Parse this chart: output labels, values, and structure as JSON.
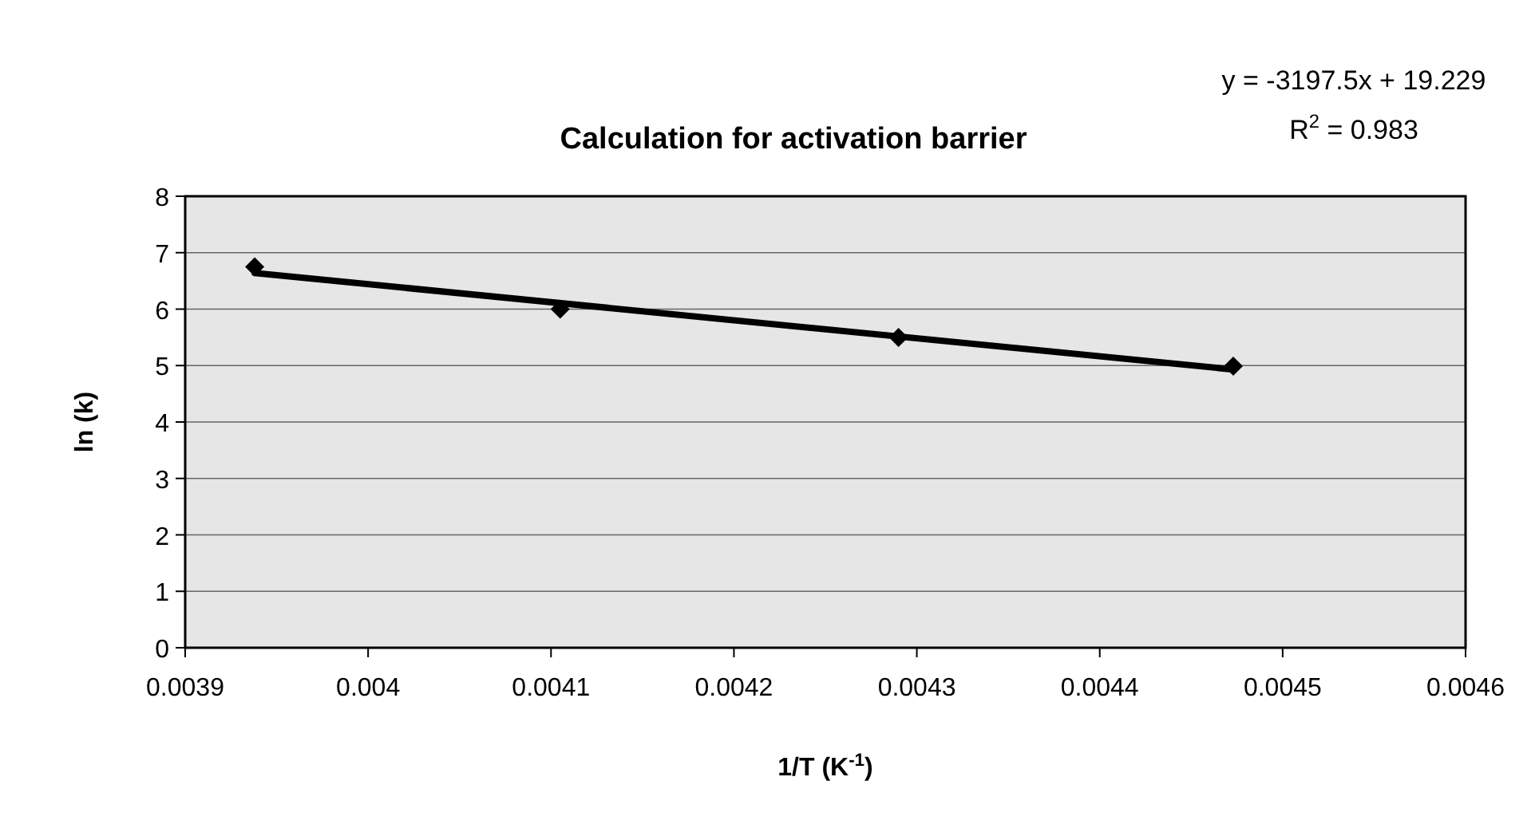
{
  "chart_data": {
    "type": "scatter",
    "title": "Calculation for activation barrier",
    "xlabel": "1/T (K$^{-1}$)",
    "ylabel": "ln (k)",
    "annotations": [
      "y = -3197.5x + 19.229",
      "R$^{2}$ = 0.983"
    ],
    "x": [
      0.003938,
      0.004105,
      0.00429,
      0.004473
    ],
    "series": [
      {
        "color": "#000000",
        "values": [
          6.75,
          6.0,
          5.5,
          4.99
        ],
        "marker": "diamond"
      },
      {
        "type": "line",
        "color": "#000000",
        "x": [
          0.003938,
          0.004473
        ],
        "values": [
          6.64,
          4.93
        ],
        "line_style": "solid"
      }
    ],
    "xlim": [
      0.0039,
      0.0046
    ],
    "xticks": [
      0.0039,
      0.004,
      0.0041,
      0.0042,
      0.0043,
      0.0044,
      0.0045,
      0.0046
    ],
    "ylim": [
      0,
      8
    ],
    "yticks": [
      0,
      1,
      2,
      3,
      4,
      5,
      6,
      7,
      8
    ],
    "grid": "y"
  }
}
